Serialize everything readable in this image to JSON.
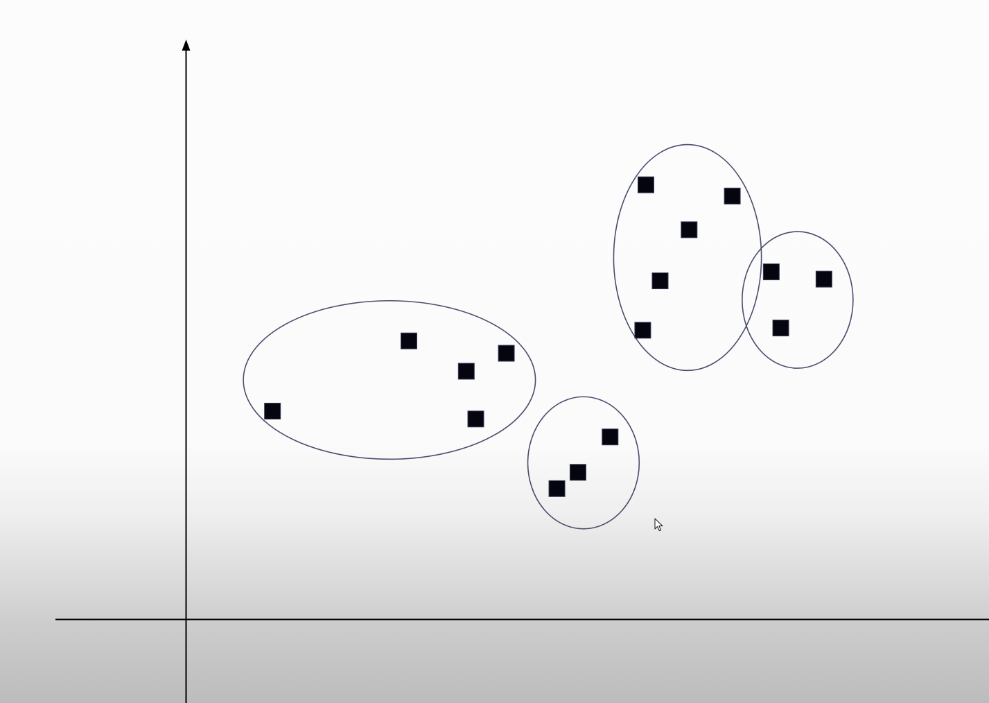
{
  "chart_data": {
    "type": "scatter",
    "title": "",
    "xlabel": "",
    "ylabel": "",
    "xlim": [
      0,
      100
    ],
    "ylim": [
      0,
      100
    ],
    "grid": false,
    "axis_ticks": false,
    "point_marker": "square",
    "point_color": "#05050f",
    "cluster_outline_color": "#4a4d6b",
    "axis_color": "#000000",
    "clusters": [
      {
        "points": [
          [
            16.4,
            37.1
          ],
          [
            42.3,
            49.6
          ],
          [
            53.2,
            44.2
          ],
          [
            60.8,
            47.4
          ],
          [
            55.0,
            35.7
          ]
        ]
      },
      {
        "points": [
          [
            70.4,
            23.3
          ],
          [
            74.4,
            26.2
          ],
          [
            80.5,
            32.5
          ]
        ]
      },
      {
        "points": [
          [
            87.3,
            77.4
          ],
          [
            103.7,
            75.4
          ],
          [
            95.5,
            69.4
          ],
          [
            90.0,
            60.3
          ],
          [
            86.7,
            51.5
          ]
        ]
      },
      {
        "points": [
          [
            111.1,
            61.9
          ],
          [
            121.1,
            60.6
          ],
          [
            112.9,
            51.9
          ]
        ]
      }
    ]
  }
}
